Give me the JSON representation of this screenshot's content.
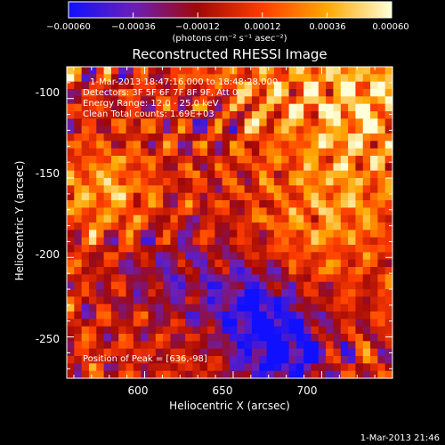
{
  "chart_data": {
    "type": "heatmap",
    "title": "Reconstructed RHESSI Image",
    "xlabel": "Heliocentric X (arcsec)",
    "ylabel": "Heliocentric Y (arcsec)",
    "xlim": [
      556,
      740
    ],
    "ylim": [
      -276,
      -80
    ],
    "xticks": [
      600,
      650,
      700
    ],
    "yticks": [
      -100,
      -150,
      -200,
      -250
    ],
    "colorbar": {
      "range": [
        -0.0006,
        0.0006
      ],
      "ticks": [
        -0.0006,
        -0.00036,
        -0.00012,
        0.00012,
        0.00036,
        0.0006
      ],
      "tick_labels": [
        "−0.00060",
        "−0.00036",
        "−0.00012",
        "0.00012",
        "0.00036",
        "0.00060"
      ],
      "units": "(photons cm⁻² s⁻¹ asec⁻²)",
      "colors": [
        "#1010ff",
        "#6a1fb8",
        "#a00808",
        "#ff3c00",
        "#ffa800",
        "#ffffd8"
      ]
    },
    "annotations": [
      "1-Mar-2013 18:47:16.000 to 18:48:28.000",
      "Detectors: 3F 5F 6F 7F 8F 9F, Att 0",
      "Energy Range: 12.0 - 25.0 keV",
      "Clean     Total counts: 1.69E+03"
    ],
    "peak_label": "Position of Peak = [636,-98]",
    "peak": [
      636,
      -98
    ]
  },
  "timestamp": "1-Mar-2013 21:46"
}
